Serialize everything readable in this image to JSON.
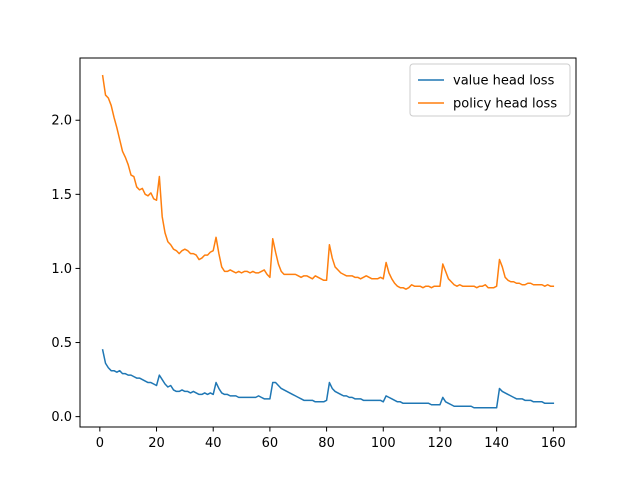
{
  "chart_data": {
    "type": "line",
    "title": "",
    "xlabel": "",
    "ylabel": "",
    "xlim": [
      -7,
      168
    ],
    "ylim": [
      -0.07,
      2.42
    ],
    "xticks": [
      0,
      20,
      40,
      60,
      80,
      100,
      120,
      140,
      160
    ],
    "yticks": [
      0.0,
      0.5,
      1.0,
      1.5,
      2.0
    ],
    "grid": false,
    "legend_position": "upper right",
    "x": [
      1,
      2,
      3,
      4,
      5,
      6,
      7,
      8,
      9,
      10,
      11,
      12,
      13,
      14,
      15,
      16,
      17,
      18,
      19,
      20,
      21,
      22,
      23,
      24,
      25,
      26,
      27,
      28,
      29,
      30,
      31,
      32,
      33,
      34,
      35,
      36,
      37,
      38,
      39,
      40,
      41,
      42,
      43,
      44,
      45,
      46,
      47,
      48,
      49,
      50,
      51,
      52,
      53,
      54,
      55,
      56,
      57,
      58,
      59,
      60,
      61,
      62,
      63,
      64,
      65,
      66,
      67,
      68,
      69,
      70,
      71,
      72,
      73,
      74,
      75,
      76,
      77,
      78,
      79,
      80,
      81,
      82,
      83,
      84,
      85,
      86,
      87,
      88,
      89,
      90,
      91,
      92,
      93,
      94,
      95,
      96,
      97,
      98,
      99,
      100,
      101,
      102,
      103,
      104,
      105,
      106,
      107,
      108,
      109,
      110,
      111,
      112,
      113,
      114,
      115,
      116,
      117,
      118,
      119,
      120,
      121,
      122,
      123,
      124,
      125,
      126,
      127,
      128,
      129,
      130,
      131,
      132,
      133,
      134,
      135,
      136,
      137,
      138,
      139,
      140,
      141,
      142,
      143,
      144,
      145,
      146,
      147,
      148,
      149,
      150,
      151,
      152,
      153,
      154,
      155,
      156,
      157,
      158,
      159,
      160
    ],
    "series": [
      {
        "name": "value head loss",
        "color": "#1f77b4",
        "values": [
          0.45,
          0.36,
          0.33,
          0.31,
          0.31,
          0.3,
          0.31,
          0.29,
          0.29,
          0.28,
          0.28,
          0.27,
          0.26,
          0.26,
          0.25,
          0.24,
          0.23,
          0.23,
          0.22,
          0.21,
          0.28,
          0.25,
          0.22,
          0.2,
          0.21,
          0.18,
          0.17,
          0.17,
          0.18,
          0.17,
          0.17,
          0.16,
          0.17,
          0.16,
          0.15,
          0.15,
          0.16,
          0.15,
          0.16,
          0.15,
          0.23,
          0.19,
          0.16,
          0.15,
          0.15,
          0.14,
          0.14,
          0.14,
          0.13,
          0.13,
          0.13,
          0.13,
          0.13,
          0.13,
          0.13,
          0.14,
          0.13,
          0.12,
          0.12,
          0.12,
          0.23,
          0.23,
          0.21,
          0.19,
          0.18,
          0.17,
          0.16,
          0.15,
          0.14,
          0.13,
          0.12,
          0.11,
          0.11,
          0.11,
          0.11,
          0.1,
          0.1,
          0.1,
          0.1,
          0.11,
          0.23,
          0.19,
          0.17,
          0.16,
          0.15,
          0.14,
          0.14,
          0.13,
          0.13,
          0.12,
          0.12,
          0.12,
          0.11,
          0.11,
          0.11,
          0.11,
          0.11,
          0.11,
          0.11,
          0.1,
          0.14,
          0.13,
          0.12,
          0.11,
          0.1,
          0.1,
          0.09,
          0.09,
          0.09,
          0.09,
          0.09,
          0.09,
          0.09,
          0.09,
          0.09,
          0.09,
          0.08,
          0.08,
          0.08,
          0.08,
          0.13,
          0.1,
          0.09,
          0.08,
          0.07,
          0.07,
          0.07,
          0.07,
          0.07,
          0.07,
          0.07,
          0.06,
          0.06,
          0.06,
          0.06,
          0.06,
          0.06,
          0.06,
          0.06,
          0.06,
          0.19,
          0.17,
          0.16,
          0.15,
          0.14,
          0.13,
          0.12,
          0.12,
          0.12,
          0.11,
          0.11,
          0.11,
          0.1,
          0.1,
          0.1,
          0.1,
          0.09,
          0.09,
          0.09,
          0.09
        ]
      },
      {
        "name": "policy head loss",
        "color": "#ff7f0e",
        "values": [
          2.3,
          2.17,
          2.15,
          2.1,
          2.02,
          1.95,
          1.87,
          1.79,
          1.75,
          1.7,
          1.63,
          1.62,
          1.55,
          1.53,
          1.54,
          1.5,
          1.49,
          1.51,
          1.47,
          1.46,
          1.62,
          1.35,
          1.24,
          1.18,
          1.16,
          1.13,
          1.12,
          1.1,
          1.12,
          1.13,
          1.12,
          1.1,
          1.1,
          1.09,
          1.06,
          1.07,
          1.09,
          1.09,
          1.11,
          1.12,
          1.21,
          1.1,
          1.01,
          0.98,
          0.98,
          0.99,
          0.98,
          0.97,
          0.98,
          0.97,
          0.98,
          0.98,
          0.97,
          0.98,
          0.97,
          0.97,
          0.98,
          0.99,
          0.96,
          0.94,
          1.2,
          1.11,
          1.03,
          0.98,
          0.96,
          0.96,
          0.96,
          0.96,
          0.96,
          0.95,
          0.94,
          0.95,
          0.95,
          0.94,
          0.93,
          0.95,
          0.94,
          0.93,
          0.92,
          0.92,
          1.16,
          1.07,
          1.01,
          0.99,
          0.97,
          0.96,
          0.95,
          0.95,
          0.95,
          0.94,
          0.94,
          0.93,
          0.94,
          0.95,
          0.94,
          0.93,
          0.93,
          0.93,
          0.94,
          0.93,
          1.04,
          0.97,
          0.93,
          0.9,
          0.88,
          0.87,
          0.87,
          0.86,
          0.87,
          0.89,
          0.88,
          0.88,
          0.88,
          0.87,
          0.88,
          0.88,
          0.87,
          0.88,
          0.88,
          0.88,
          1.03,
          0.98,
          0.93,
          0.91,
          0.89,
          0.88,
          0.89,
          0.88,
          0.88,
          0.88,
          0.88,
          0.88,
          0.87,
          0.88,
          0.88,
          0.89,
          0.87,
          0.87,
          0.87,
          0.88,
          1.06,
          1.01,
          0.94,
          0.92,
          0.91,
          0.91,
          0.9,
          0.9,
          0.89,
          0.89,
          0.9,
          0.9,
          0.89,
          0.89,
          0.89,
          0.89,
          0.88,
          0.89,
          0.88,
          0.88
        ]
      }
    ]
  }
}
